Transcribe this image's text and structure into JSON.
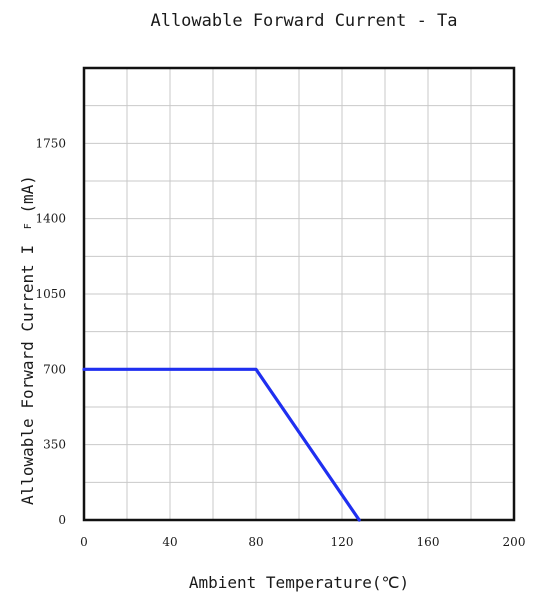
{
  "chart_data": {
    "type": "line",
    "title": "Allowable Forward Current - Ta",
    "xlabel": "Ambient Temperature(℃)",
    "ylabel_main": "Allowable Forward Current I",
    "ylabel_sub": "F",
    "ylabel_unit": "(mA)",
    "xlim": [
      0,
      200
    ],
    "ylim": [
      0,
      2100
    ],
    "x_ticks": [
      0,
      40,
      80,
      120,
      160,
      200
    ],
    "x_tick_labels": [
      "0",
      "40",
      "80",
      "120",
      "160",
      "200"
    ],
    "y_ticks": [
      0,
      350,
      700,
      1050,
      1400,
      1750
    ],
    "y_tick_labels": [
      "0",
      "350",
      "700",
      "1050",
      "1400",
      "1750"
    ],
    "x_grid_step": 20,
    "y_grid_step": 175,
    "grid": true,
    "legend": "none",
    "series": [
      {
        "color": "#1f2ff0",
        "x": [
          0,
          80,
          128
        ],
        "y": [
          700,
          700,
          0
        ]
      }
    ]
  }
}
